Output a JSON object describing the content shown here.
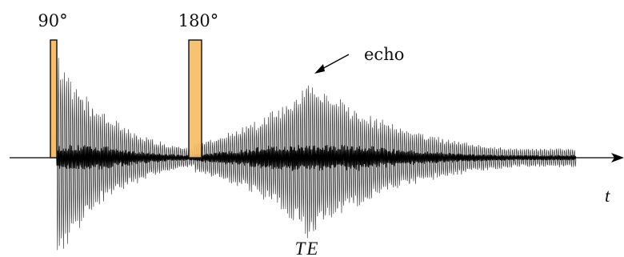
{
  "labels": {
    "pulse_90": "90°",
    "pulse_180": "180°",
    "echo": "echo",
    "time_axis": "t",
    "echo_time": "TE"
  },
  "colors": {
    "pulse_fill": "#f7bd67",
    "pulse_stroke": "#1a1a1a",
    "signal": "#1e1e1e",
    "axis": "#000000"
  }
}
